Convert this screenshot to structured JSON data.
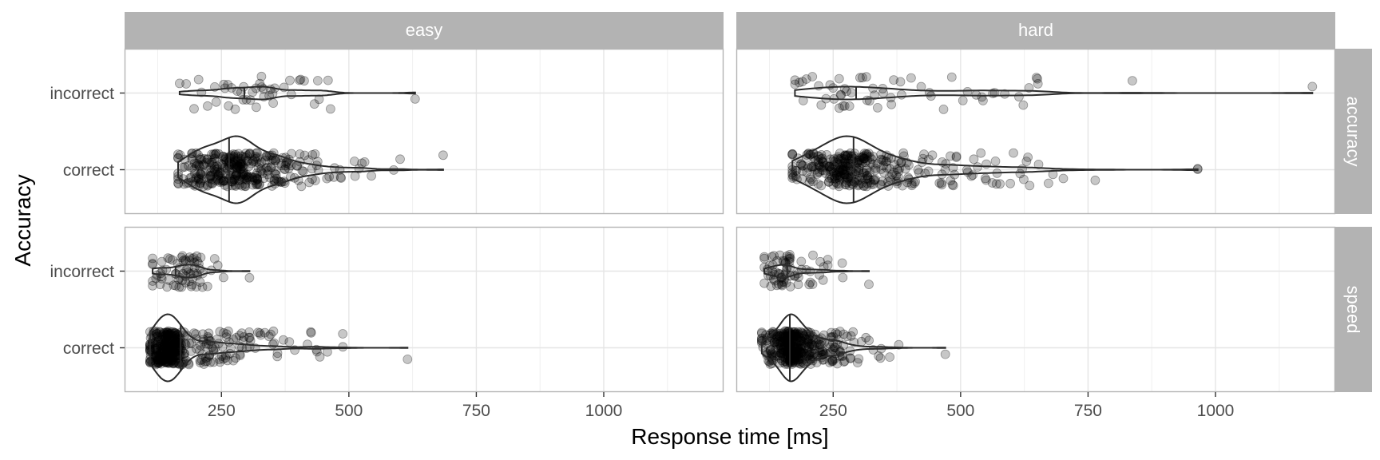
{
  "chart_data": {
    "type": "violin-jitter",
    "xlabel": "Response time [ms]",
    "ylabel": "Accuracy",
    "xlim": [
      60,
      1235
    ],
    "x_ticks": [
      250,
      500,
      750,
      1000
    ],
    "x_tick_labels": [
      "250",
      "500",
      "750",
      "1000"
    ],
    "categories": [
      "correct",
      "incorrect"
    ],
    "columns": [
      "easy",
      "hard"
    ],
    "rows": [
      "accuracy",
      "speed"
    ],
    "grid": true,
    "panels": [
      {
        "column": "easy",
        "row": "accuracy",
        "groups": [
          {
            "category": "incorrect",
            "min": 168,
            "max": 630,
            "median": 295,
            "peak": 290,
            "count": 45
          },
          {
            "category": "correct",
            "min": 165,
            "max": 685,
            "median": 265,
            "peak": 250,
            "count": 340
          }
        ]
      },
      {
        "column": "hard",
        "row": "accuracy",
        "groups": [
          {
            "category": "incorrect",
            "min": 175,
            "max": 1190,
            "median": 295,
            "peak": 270,
            "count": 60
          },
          {
            "category": "correct",
            "min": 170,
            "max": 965,
            "median": 290,
            "peak": 260,
            "count": 340
          }
        ]
      },
      {
        "column": "easy",
        "row": "speed",
        "groups": [
          {
            "category": "incorrect",
            "min": 115,
            "max": 305,
            "median": 160,
            "peak": 170,
            "count": 70
          },
          {
            "category": "correct",
            "min": 110,
            "max": 615,
            "median": 170,
            "peak": 140,
            "count": 380
          }
        ]
      },
      {
        "column": "hard",
        "row": "speed",
        "groups": [
          {
            "category": "incorrect",
            "min": 115,
            "max": 320,
            "median": 160,
            "peak": 150,
            "count": 70
          },
          {
            "category": "correct",
            "min": 110,
            "max": 470,
            "median": 165,
            "peak": 160,
            "count": 380
          }
        ]
      }
    ]
  }
}
